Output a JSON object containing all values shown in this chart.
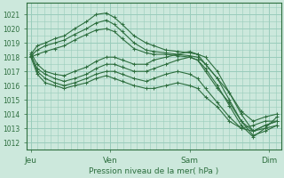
{
  "bg_color": "#cce8dc",
  "grid_color": "#99ccbb",
  "line_color": "#2d6e3e",
  "ylim": [
    1011.5,
    1021.8
  ],
  "yticks": [
    1012,
    1013,
    1014,
    1015,
    1016,
    1017,
    1018,
    1019,
    1020,
    1021
  ],
  "xtick_labels": [
    "Jeu",
    "Ven",
    "Sam",
    "Dim"
  ],
  "xtick_positions": [
    0.0,
    1.0,
    2.0,
    3.0
  ],
  "xlabel": "Pression niveau de la mer( hPa )",
  "xlim": [
    -0.05,
    3.15
  ],
  "lines": [
    {
      "x": [
        0.0,
        0.08,
        0.18,
        0.3,
        0.42,
        0.55,
        0.7,
        0.82,
        0.95,
        1.05,
        1.15,
        1.3,
        1.45,
        1.55,
        1.7,
        1.85,
        2.0,
        2.1,
        2.2,
        2.35,
        2.5,
        2.65,
        2.8,
        2.95,
        3.1
      ],
      "y": [
        1018.2,
        1018.8,
        1019.0,
        1019.3,
        1019.5,
        1020.0,
        1020.5,
        1021.0,
        1021.1,
        1020.8,
        1020.3,
        1019.5,
        1019.0,
        1018.8,
        1018.5,
        1018.4,
        1018.3,
        1018.2,
        1018.0,
        1017.0,
        1015.5,
        1014.0,
        1012.8,
        1013.2,
        1013.5
      ]
    },
    {
      "x": [
        0.0,
        0.08,
        0.18,
        0.3,
        0.42,
        0.55,
        0.7,
        0.82,
        0.95,
        1.05,
        1.15,
        1.3,
        1.45,
        1.55,
        1.7,
        1.85,
        2.0,
        2.1,
        2.2,
        2.35,
        2.5,
        2.65,
        2.8,
        2.95,
        3.1
      ],
      "y": [
        1018.1,
        1018.5,
        1018.8,
        1019.0,
        1019.2,
        1019.6,
        1020.0,
        1020.4,
        1020.6,
        1020.3,
        1019.8,
        1019.0,
        1018.5,
        1018.4,
        1018.3,
        1018.2,
        1018.1,
        1018.0,
        1017.5,
        1016.5,
        1015.0,
        1013.5,
        1012.5,
        1012.8,
        1013.2
      ]
    },
    {
      "x": [
        0.0,
        0.08,
        0.18,
        0.3,
        0.42,
        0.55,
        0.7,
        0.82,
        0.95,
        1.05,
        1.15,
        1.3,
        1.45,
        1.55,
        1.7,
        1.85,
        2.0,
        2.1,
        2.2,
        2.35,
        2.5,
        2.65,
        2.8,
        2.95,
        3.1
      ],
      "y": [
        1018.0,
        1018.2,
        1018.4,
        1018.6,
        1018.8,
        1019.2,
        1019.6,
        1019.9,
        1020.0,
        1019.8,
        1019.3,
        1018.6,
        1018.3,
        1018.2,
        1018.2,
        1018.1,
        1018.0,
        1017.8,
        1017.2,
        1016.0,
        1014.6,
        1013.2,
        1012.4,
        1013.0,
        1013.8
      ]
    },
    {
      "x": [
        0.0,
        0.08,
        0.18,
        0.3,
        0.42,
        0.55,
        0.7,
        0.82,
        0.95,
        1.05,
        1.15,
        1.3,
        1.45,
        1.55,
        1.7,
        1.85,
        2.0,
        2.1,
        2.2,
        2.35,
        2.5,
        2.65,
        2.8,
        2.95,
        3.1
      ],
      "y": [
        1018.3,
        1017.5,
        1017.0,
        1016.8,
        1016.7,
        1017.0,
        1017.3,
        1017.7,
        1018.0,
        1018.0,
        1017.8,
        1017.5,
        1017.5,
        1017.8,
        1018.0,
        1018.2,
        1018.4,
        1018.2,
        1017.5,
        1016.5,
        1015.5,
        1014.2,
        1013.5,
        1013.8,
        1014.0
      ]
    },
    {
      "x": [
        0.0,
        0.08,
        0.18,
        0.3,
        0.42,
        0.55,
        0.7,
        0.82,
        0.95,
        1.05,
        1.15,
        1.3,
        1.45,
        1.55,
        1.7,
        1.85,
        2.0,
        2.1,
        2.2,
        2.35,
        2.5,
        2.65,
        2.8,
        2.95,
        3.1
      ],
      "y": [
        1018.1,
        1017.2,
        1016.8,
        1016.5,
        1016.3,
        1016.5,
        1016.8,
        1017.2,
        1017.5,
        1017.5,
        1017.3,
        1017.0,
        1017.0,
        1017.2,
        1017.5,
        1017.8,
        1018.0,
        1017.8,
        1017.0,
        1015.8,
        1014.8,
        1013.5,
        1012.8,
        1013.2,
        1013.5
      ]
    },
    {
      "x": [
        0.0,
        0.08,
        0.18,
        0.3,
        0.42,
        0.55,
        0.7,
        0.82,
        0.95,
        1.05,
        1.15,
        1.3,
        1.45,
        1.55,
        1.7,
        1.85,
        2.0,
        2.1,
        2.2,
        2.35,
        2.5,
        2.65,
        2.8,
        2.95,
        3.1
      ],
      "y": [
        1018.2,
        1017.0,
        1016.5,
        1016.2,
        1016.0,
        1016.2,
        1016.5,
        1016.8,
        1017.0,
        1017.0,
        1016.8,
        1016.5,
        1016.3,
        1016.5,
        1016.8,
        1017.0,
        1016.8,
        1016.5,
        1015.8,
        1014.8,
        1013.8,
        1013.0,
        1012.8,
        1013.0,
        1013.2
      ]
    },
    {
      "x": [
        0.0,
        0.08,
        0.18,
        0.3,
        0.42,
        0.55,
        0.7,
        0.82,
        0.95,
        1.05,
        1.15,
        1.3,
        1.45,
        1.55,
        1.7,
        1.85,
        2.0,
        2.1,
        2.2,
        2.35,
        2.5,
        2.65,
        2.8,
        2.95,
        3.1
      ],
      "y": [
        1018.0,
        1016.8,
        1016.2,
        1016.0,
        1015.8,
        1016.0,
        1016.2,
        1016.5,
        1016.7,
        1016.5,
        1016.3,
        1016.0,
        1015.8,
        1015.8,
        1016.0,
        1016.2,
        1016.0,
        1015.8,
        1015.2,
        1014.5,
        1013.5,
        1013.0,
        1013.2,
        1013.5,
        1013.5
      ]
    }
  ]
}
